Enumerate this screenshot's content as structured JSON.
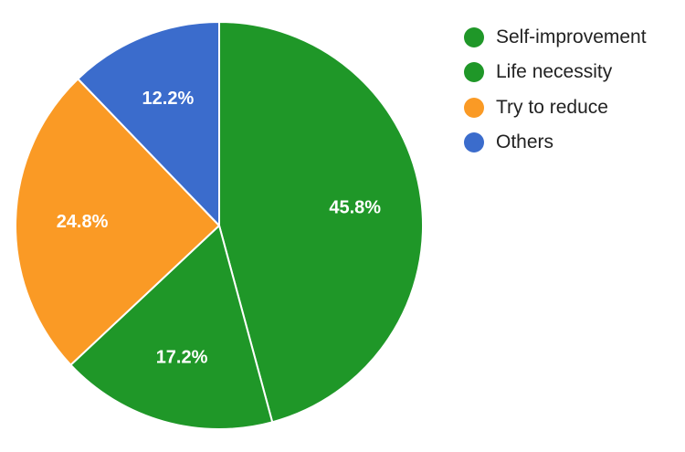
{
  "chart_data": {
    "type": "pie",
    "categories": [
      "Self-improvement",
      "Life necessity",
      "Try to reduce",
      "Others"
    ],
    "values": [
      45.8,
      17.2,
      24.8,
      12.2
    ],
    "labels": [
      "45.8%",
      "17.2%",
      "24.8%",
      "12.2%"
    ],
    "colors": [
      "#1f9728",
      "#1f9728",
      "#fa9a25",
      "#3b6ccc"
    ],
    "start_angle": "12 o'clock",
    "direction": "clockwise",
    "legend_position": "right",
    "legend": [
      {
        "label": "Self-improvement",
        "color": "#1f9728"
      },
      {
        "label": "Life necessity",
        "color": "#1f9728"
      },
      {
        "label": "Try to reduce",
        "color": "#fa9a25"
      },
      {
        "label": "Others",
        "color": "#3b6ccc"
      }
    ]
  }
}
